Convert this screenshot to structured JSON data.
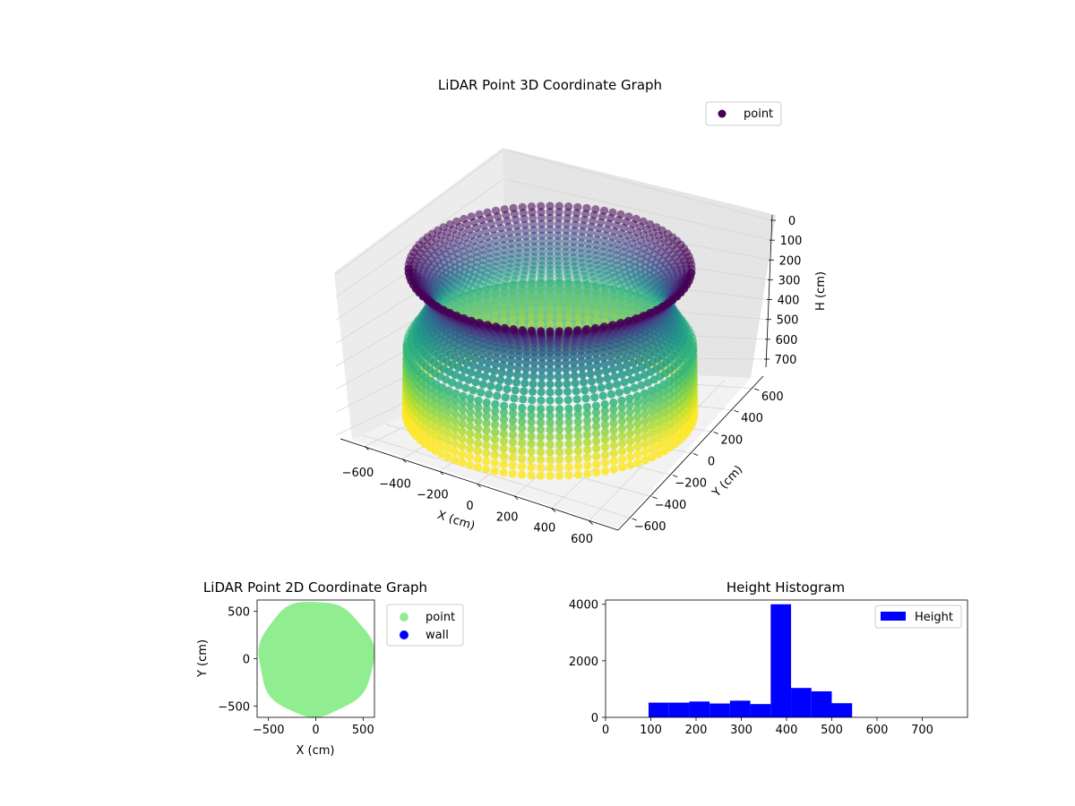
{
  "chart_data": [
    {
      "type": "scatter",
      "projection": "3d",
      "title": "LiDAR Point 3D Coordinate Graph",
      "xlabel": "X (cm)",
      "ylabel": "Y (cm)",
      "zlabel": "H (cm)",
      "xticks": [
        "−600",
        "−400",
        "−200",
        "0",
        "200",
        "400",
        "600"
      ],
      "yticks": [
        "−600",
        "−400",
        "−200",
        "0",
        "200",
        "400",
        "600"
      ],
      "zticks": [
        "0",
        "100",
        "200",
        "300",
        "400",
        "500",
        "600",
        "700"
      ],
      "xlim": [
        -650,
        650
      ],
      "ylim": [
        -650,
        650
      ],
      "zlim": [
        0,
        750
      ],
      "z_axis_inverted": true,
      "colormap": "viridis",
      "color_by": "H",
      "legend": [
        "point"
      ],
      "legend_position": "upper right",
      "grid": true,
      "series": [
        {
          "name": "point",
          "shape": "cylindrical wall",
          "radius_cm": 600,
          "h_range_cm": [
            0,
            700
          ]
        }
      ]
    },
    {
      "type": "scatter",
      "title": "LiDAR Point 2D Coordinate Graph",
      "xlabel": "X (cm)",
      "ylabel": "Y (cm)",
      "xticks": [
        "−500",
        "0",
        "500"
      ],
      "yticks": [
        "500",
        "0",
        "−500"
      ],
      "xlim": [
        -620,
        620
      ],
      "ylim": [
        -620,
        620
      ],
      "legend_position": "outside right",
      "series": [
        {
          "name": "point",
          "color": "#90ee90",
          "shape": "filled disc",
          "radius_cm": 610
        },
        {
          "name": "wall",
          "color": "#0000ff"
        }
      ]
    },
    {
      "type": "bar",
      "subtype": "histogram",
      "title": "Height Histogram",
      "xticks": [
        "0",
        "100",
        "200",
        "300",
        "400",
        "500",
        "600",
        "700"
      ],
      "yticks": [
        "0",
        "2000",
        "4000"
      ],
      "xlim": [
        0,
        800
      ],
      "ylim": [
        0,
        4150
      ],
      "color": "#0000ff",
      "legend": [
        "Height"
      ],
      "legend_position": "upper right",
      "bin_width": 45,
      "bins": [
        {
          "start": 95,
          "count": 520
        },
        {
          "start": 140,
          "count": 520
        },
        {
          "start": 185,
          "count": 560
        },
        {
          "start": 230,
          "count": 490
        },
        {
          "start": 275,
          "count": 590
        },
        {
          "start": 320,
          "count": 470
        },
        {
          "start": 365,
          "count": 4000
        },
        {
          "start": 410,
          "count": 1040
        },
        {
          "start": 455,
          "count": 920
        },
        {
          "start": 500,
          "count": 500
        }
      ]
    }
  ]
}
